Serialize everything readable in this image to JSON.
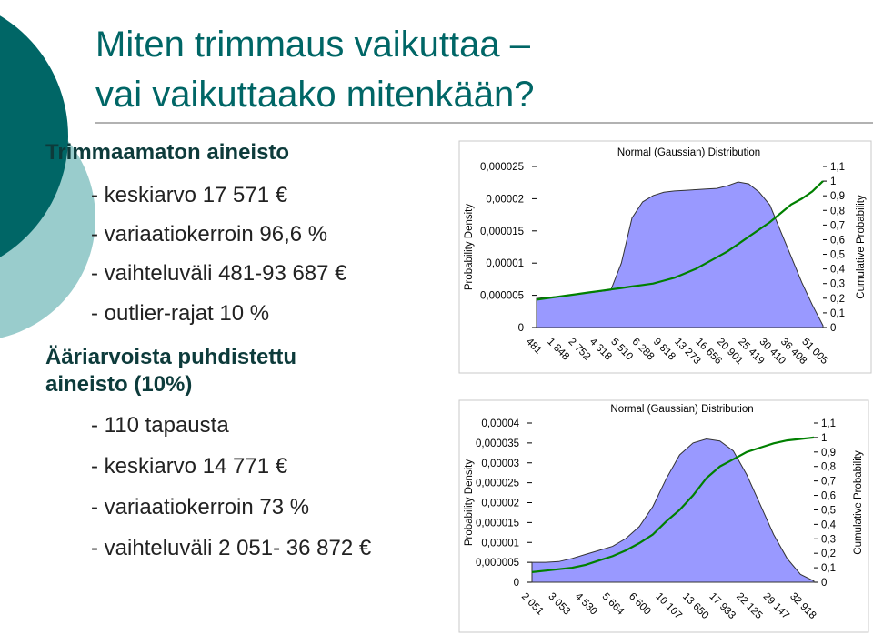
{
  "slide": {
    "title": [
      "Miten trimmaus vaikuttaa –",
      "vai vaikuttaako mitenkään?"
    ],
    "sections": [
      {
        "heading": [
          "Trimmaamaton aineisto"
        ],
        "items": [
          "- keskiarvo 17 571 €",
          "- variaatiokerroin 96,6 %",
          "- vaihteluväli 481-93 687 €",
          "- outlier-rajat 10 %"
        ]
      },
      {
        "heading": [
          "Ääriarvoista puhdistettu",
          "aineisto (10%)"
        ],
        "items": [
          "- 110 tapausta",
          "- keskiarvo 14 771 €",
          "- variaatiokerroin 73 %",
          "- vaihteluväli 2 051- 36 872 €"
        ]
      }
    ]
  },
  "chart_data": [
    {
      "type": "area",
      "title": "Normal (Gaussian) Distribution",
      "ylabel": "Probability Density",
      "y2label": "Cumulative Probability",
      "categories": [
        "481",
        null,
        "1 848",
        null,
        "2 752",
        null,
        "4 318",
        null,
        "5 510",
        null,
        "6 288",
        null,
        "9 818",
        null,
        "13 273",
        null,
        "16 656",
        null,
        "20 901",
        null,
        "25 419",
        null,
        "30 410",
        null,
        "36 408",
        null,
        "51 005",
        null
      ],
      "series": [
        {
          "type": "area",
          "color": "#9999ff",
          "values": [
            4.5e-06,
            4.7e-06,
            4.8e-06,
            5e-06,
            5.2e-06,
            5.4e-06,
            5.6e-06,
            5.8e-06,
            1e-05,
            1.7e-05,
            1.95e-05,
            2.05e-05,
            2.1e-05,
            2.12e-05,
            2.13e-05,
            2.14e-05,
            2.15e-05,
            2.16e-05,
            2.2e-05,
            2.26e-05,
            2.23e-05,
            2.1e-05,
            1.9e-05,
            1.5e-05,
            1.1e-05,
            7e-06,
            3.5e-06,
            3e-07
          ]
        },
        {
          "type": "line",
          "axis": "y2",
          "color": "#008000",
          "values": [
            0.19,
            0.2,
            0.21,
            0.22,
            0.23,
            0.24,
            0.25,
            0.26,
            0.27,
            0.28,
            0.29,
            0.3,
            0.32,
            0.34,
            0.37,
            0.4,
            0.44,
            0.48,
            0.52,
            0.57,
            0.62,
            0.67,
            0.72,
            0.78,
            0.84,
            0.88,
            0.93,
            1
          ]
        }
      ],
      "ylim": [
        0,
        2.5e-05
      ],
      "yticks": [
        0,
        {
          "value": 5e-06,
          "label": "0,000005"
        },
        {
          "value": 1e-05,
          "label": "0,00001"
        },
        {
          "value": 1.5e-05,
          "label": "0,000015"
        },
        {
          "value": 2e-05,
          "label": "0,00002"
        },
        {
          "value": 2.5e-05,
          "label": "0,000025"
        }
      ],
      "y2lim": [
        0,
        1.1
      ],
      "y2ticks": [
        0,
        {
          "value": 0.1,
          "label": "0,1"
        },
        {
          "value": 0.2,
          "label": "0,2"
        },
        {
          "value": 0.3,
          "label": "0,3"
        },
        {
          "value": 0.4,
          "label": "0,4"
        },
        {
          "value": 0.5,
          "label": "0,5"
        },
        {
          "value": 0.6,
          "label": "0,6"
        },
        {
          "value": 0.7,
          "label": "0,7"
        },
        {
          "value": 0.8,
          "label": "0,8"
        },
        {
          "value": 0.9,
          "label": "0,9"
        },
        1,
        {
          "value": 1.1,
          "label": "1,1"
        }
      ]
    },
    {
      "type": "area",
      "title": "Normal (Gaussian) Distribution",
      "ylabel": "Probability Density",
      "y2label": "Cumulative Probability",
      "categories": [
        "2 051",
        null,
        "3 053",
        null,
        "4 530",
        null,
        "5 664",
        null,
        "6 600",
        null,
        "10 107",
        null,
        "13 650",
        null,
        "17 933",
        null,
        "22 125",
        null,
        "29 147",
        null,
        "32 918",
        null
      ],
      "series": [
        {
          "type": "area",
          "color": "#9999ff",
          "values": [
            5e-06,
            5e-06,
            5.2e-06,
            6e-06,
            7e-06,
            8e-06,
            9e-06,
            1.1e-05,
            1.4e-05,
            1.9e-05,
            2.6e-05,
            3.2e-05,
            3.5e-05,
            3.6e-05,
            3.55e-05,
            3.3e-05,
            2.7e-05,
            1.95e-05,
            1.2e-05,
            6e-06,
            2e-06,
            3e-07
          ]
        },
        {
          "type": "line",
          "axis": "y2",
          "color": "#008000",
          "values": [
            0.07,
            0.08,
            0.09,
            0.1,
            0.12,
            0.15,
            0.18,
            0.22,
            0.27,
            0.33,
            0.42,
            0.5,
            0.6,
            0.72,
            0.8,
            0.85,
            0.9,
            0.93,
            0.96,
            0.98,
            0.99,
            1
          ]
        }
      ],
      "ylim": [
        0,
        4e-05
      ],
      "yticks": [
        0,
        {
          "value": 5e-06,
          "label": "0,000005"
        },
        {
          "value": 1e-05,
          "label": "0,00001"
        },
        {
          "value": 1.5e-05,
          "label": "0,000015"
        },
        {
          "value": 2e-05,
          "label": "0,00002"
        },
        {
          "value": 2.5e-05,
          "label": "0,000025"
        },
        {
          "value": 3e-05,
          "label": "0,00003"
        },
        {
          "value": 3.5e-05,
          "label": "0,000035"
        },
        {
          "value": 4e-05,
          "label": "0,00004"
        }
      ],
      "y2lim": [
        0,
        1.1
      ],
      "y2ticks": [
        0,
        {
          "value": 0.1,
          "label": "0,1"
        },
        {
          "value": 0.2,
          "label": "0,2"
        },
        {
          "value": 0.3,
          "label": "0,3"
        },
        {
          "value": 0.4,
          "label": "0,4"
        },
        {
          "value": 0.5,
          "label": "0,5"
        },
        {
          "value": 0.6,
          "label": "0,6"
        },
        {
          "value": 0.7,
          "label": "0,7"
        },
        {
          "value": 0.8,
          "label": "0,8"
        },
        {
          "value": 0.9,
          "label": "0,9"
        },
        1,
        {
          "value": 1.1,
          "label": "1,1"
        }
      ]
    }
  ]
}
